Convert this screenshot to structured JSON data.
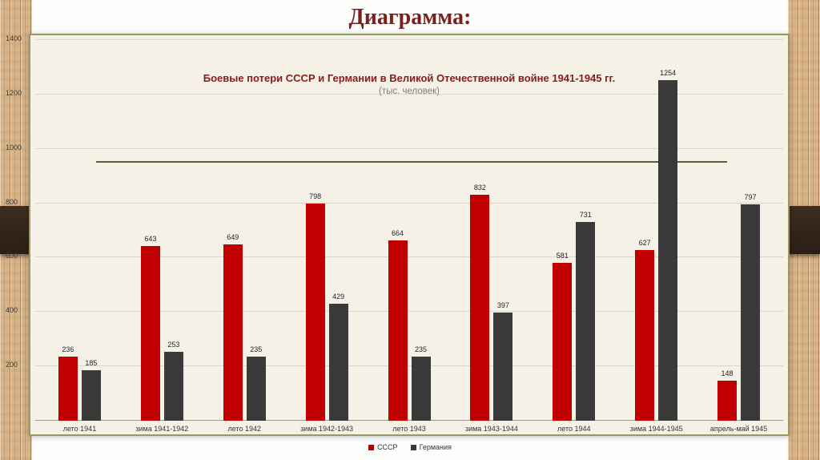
{
  "slide": {
    "title": "Диаграмма:"
  },
  "chart_data": {
    "type": "bar",
    "title": "Боевые потери СССР и Германии в Великой Отечественной войне 1941-1945 гг.",
    "subtitle": "(тыс. человек)",
    "categories": [
      "лето 1941",
      "зима 1941-1942",
      "лето 1942",
      "зима 1942-1943",
      "лето 1943",
      "зима 1943-1944",
      "лето 1944",
      "зима 1944-1945",
      "апрель-май 1945"
    ],
    "series": [
      {
        "name": "СССР",
        "color": "#c00000",
        "values": [
          236,
          643,
          649,
          798,
          664,
          832,
          581,
          627,
          148
        ]
      },
      {
        "name": "Германия",
        "color": "#3a3a3a",
        "values": [
          185,
          253,
          235,
          429,
          235,
          397,
          731,
          1254,
          797
        ]
      }
    ],
    "ylim": [
      0,
      1400
    ],
    "y_ticks": [
      200,
      400,
      600,
      800,
      1000,
      1200,
      1400
    ],
    "grid": true,
    "legend_position": "bottom",
    "accent_line_value": 950
  }
}
